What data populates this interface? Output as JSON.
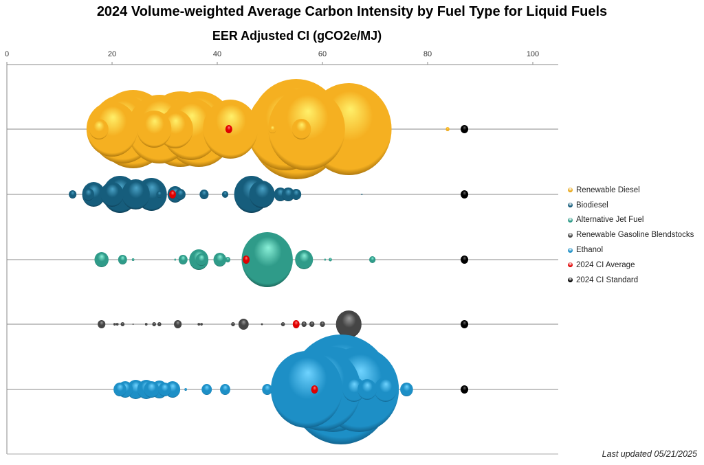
{
  "chart_data": {
    "type": "scatter",
    "subtype": "bubble",
    "title": "2024 Volume-weighted Average Carbon Intensity by Fuel Type for Liquid Fuels",
    "xlabel": "EER Adjusted CI (gCO2e/MJ)",
    "ylabel": "",
    "xlim": [
      0,
      105
    ],
    "xticks": [
      "0",
      "20",
      "40",
      "60",
      "80",
      "100"
    ],
    "xtick_values": [
      0,
      20,
      40,
      60,
      80,
      100
    ],
    "legend_position": "right",
    "ci_standard": 87,
    "series": [
      {
        "name": "Renewable Diesel",
        "color": "#f5b021",
        "light": "#fff06a",
        "dark": "#7a4f00",
        "average": 42.2,
        "points": [
          [
            17.5,
            15
          ],
          [
            20,
            40
          ],
          [
            22,
            50
          ],
          [
            24,
            57
          ],
          [
            28,
            27
          ],
          [
            29,
            50
          ],
          [
            32,
            28
          ],
          [
            33,
            55
          ],
          [
            36.5,
            55
          ],
          [
            35,
            45
          ],
          [
            42.5,
            43
          ],
          [
            50.5,
            6
          ],
          [
            53,
            60
          ],
          [
            55,
            73
          ],
          [
            56,
            15
          ],
          [
            57,
            60
          ],
          [
            65,
            67
          ],
          [
            83.8,
            3
          ]
        ]
      },
      {
        "name": "Biodiesel",
        "color": "#165d7c",
        "light": "#4aa2c6",
        "dark": "#062638",
        "average": 31.5,
        "points": [
          [
            12.5,
            6
          ],
          [
            15.5,
            9
          ],
          [
            16.5,
            18
          ],
          [
            20,
            18
          ],
          [
            21.5,
            27
          ],
          [
            24.5,
            22
          ],
          [
            27.5,
            24
          ],
          [
            29,
            5
          ],
          [
            32,
            12
          ],
          [
            33,
            8
          ],
          [
            37.5,
            7
          ],
          [
            41.5,
            5
          ],
          [
            46.5,
            27
          ],
          [
            48.5,
            20
          ],
          [
            52,
            10
          ],
          [
            53.5,
            10
          ],
          [
            55,
            8
          ],
          [
            67.5,
            1
          ]
        ]
      },
      {
        "name": "Alternative Jet Fuel",
        "color": "#2f9b89",
        "light": "#8af0d8",
        "dark": "#0d4038",
        "average": 45.5,
        "points": [
          [
            18,
            11
          ],
          [
            22,
            7
          ],
          [
            24,
            2
          ],
          [
            32,
            1.5
          ],
          [
            33.5,
            7
          ],
          [
            36.5,
            15
          ],
          [
            37,
            9
          ],
          [
            40.5,
            10
          ],
          [
            42,
            4
          ],
          [
            49.5,
            40
          ],
          [
            56.5,
            14
          ],
          [
            60.5,
            1.5
          ],
          [
            61.5,
            2.5
          ],
          [
            69.5,
            5
          ]
        ]
      },
      {
        "name": "Renewable Gasoline Blendstocks",
        "color": "#454545",
        "light": "#9a9a9a",
        "dark": "#141414",
        "average": 55,
        "points": [
          [
            18,
            6
          ],
          [
            20.5,
            2
          ],
          [
            21,
            2
          ],
          [
            22,
            3
          ],
          [
            24,
            1
          ],
          [
            26.5,
            2
          ],
          [
            28,
            3
          ],
          [
            29,
            3
          ],
          [
            32.5,
            6
          ],
          [
            36.5,
            2
          ],
          [
            37,
            2
          ],
          [
            43,
            3
          ],
          [
            45,
            8
          ],
          [
            48.5,
            1.5
          ],
          [
            52.5,
            3
          ],
          [
            56.5,
            4
          ],
          [
            58,
            4
          ],
          [
            60,
            4
          ],
          [
            65,
            20
          ]
        ]
      },
      {
        "name": "Ethanol",
        "color": "#1d8fc6",
        "light": "#6fd3ff",
        "dark": "#0a4466",
        "average": 58.5,
        "points": [
          [
            21.5,
            10
          ],
          [
            22.5,
            12
          ],
          [
            24.5,
            14
          ],
          [
            26.5,
            14
          ],
          [
            27.5,
            12
          ],
          [
            29,
            13
          ],
          [
            30,
            10
          ],
          [
            31.5,
            12
          ],
          [
            34,
            2
          ],
          [
            38,
            8
          ],
          [
            41.5,
            8
          ],
          [
            49.5,
            8
          ],
          [
            57,
            56
          ],
          [
            60,
            60
          ],
          [
            62,
            62
          ],
          [
            63.5,
            80
          ],
          [
            67,
            62
          ],
          [
            66,
            18
          ],
          [
            68.5,
            15
          ],
          [
            72,
            18
          ],
          [
            76,
            10
          ]
        ]
      }
    ],
    "legend": [
      "Renewable Diesel",
      "Biodiesel",
      "Alternative Jet Fuel",
      "Renewable Gasoline Blendstocks",
      "Ethanol",
      "2024 CI Average",
      "2024 CI Standard"
    ],
    "legend_colors": [
      "#e8a81c",
      "#165d7c",
      "#2f9b89",
      "#454545",
      "#1d8fc6",
      "#e00000",
      "#000000"
    ]
  },
  "footer": {
    "last_updated": "Last updated 05/21/2025"
  }
}
